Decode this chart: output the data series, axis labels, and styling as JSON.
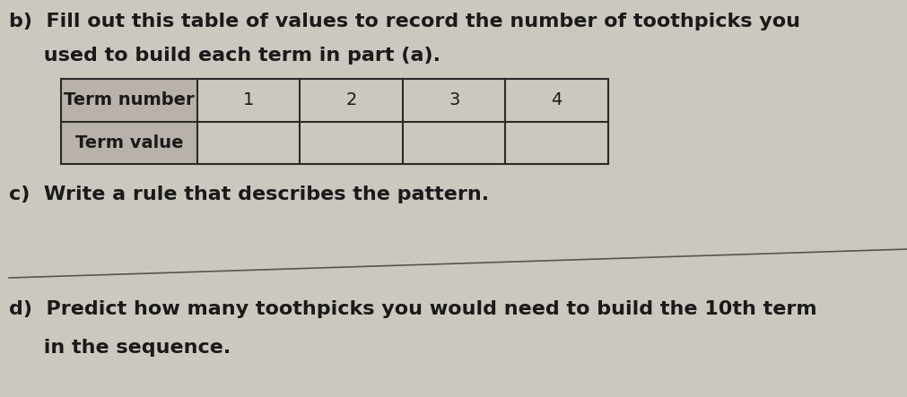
{
  "background_color": "#cdc8bf",
  "title_b_part1": "b)  Fill out this table of values to record the number of toothpicks you",
  "title_b_part2": "     used to build each term in part (a).",
  "table_header_col0": "Term number",
  "table_header_vals": [
    "1",
    "2",
    "3",
    "4"
  ],
  "table_row2_col0": "Term value",
  "label_c": "c)  Write a rule that describes the pattern.",
  "label_d": "d)  Predict how many toothpicks you would need to build the 10th term",
  "label_d2": "     in the sequence.",
  "font_size_body": 16,
  "font_size_table": 14,
  "text_color": "#1a1a1a",
  "table_border_color": "#2a2a2a",
  "table_fill_header": "#b8b2aa",
  "line_color": "#555555"
}
